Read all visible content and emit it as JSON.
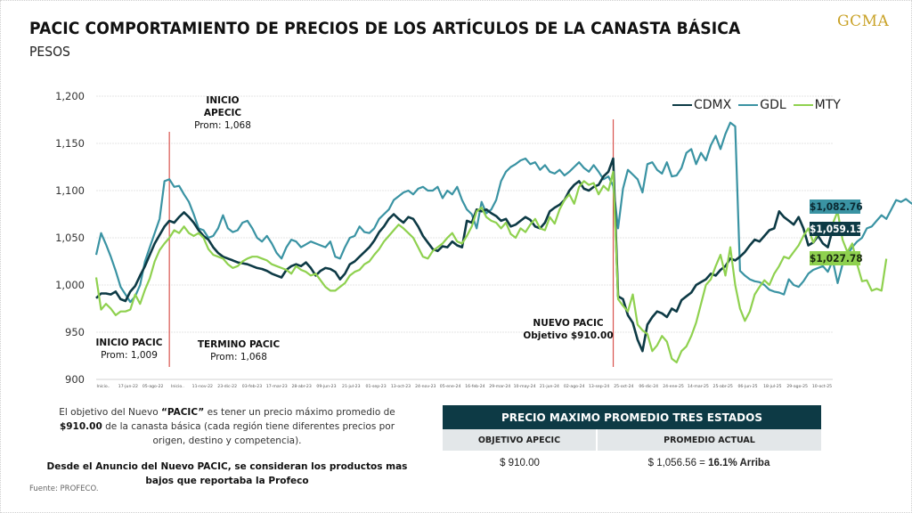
{
  "header": {
    "title": "PACIC COMPORTAMIENTO DE PRECIOS DE LOS ARTÍCULOS DE LA CANASTA BÁSICA",
    "subtitle": "PESOS",
    "logo": "GCMA"
  },
  "colors": {
    "CDMX": "#0d3a45",
    "GDL": "#3a93a3",
    "MTY": "#8fd14f",
    "event_line": "#d9534f",
    "table_header": "#0d3a45",
    "table_subheader": "#e3e7e9"
  },
  "annotations": {
    "inicio_apecic": {
      "line1": "INICIO",
      "line2": "APECIC",
      "line3": "Prom: 1,068"
    },
    "inicio_pacic": {
      "line1": "INICIO PACIC",
      "line2": "Prom: 1,009"
    },
    "termino_pacic": {
      "line1": "TERMINO PACIC",
      "line2": "Prom: 1,068"
    },
    "nuevo_pacic": {
      "line1": "NUEVO PACIC",
      "line2": "Objetivo $910.00"
    }
  },
  "end_labels": {
    "GDL": "$1,082.76",
    "CDMX": "$1,059.13",
    "MTY": "$1,027.78"
  },
  "notes": {
    "p1_pre": "El objetivo del Nuevo ",
    "p1_bold1": "“PACIC”",
    "p1_mid": " es tener un precio máximo promedio de ",
    "p1_bold2": "$910.00",
    "p1_post": " de la canasta básica (cada región tiene diferentes precios por origen, destino y competencia).",
    "p2": "Desde el Anuncio del Nuevo PACIC, se consideran los productos mas bajos que reportaba la Profeco",
    "source": "Fuente: PROFECO."
  },
  "table": {
    "title": "PRECIO MAXIMO PROMEDIO TRES ESTADOS",
    "col1_header": "OBJETIVO APECIC",
    "col2_header": "PROMEDIO ACTUAL",
    "col1_value": "$ 910.00",
    "col2_value": "$ 1,056.56  =",
    "col2_bold": "16.1% Arriba"
  },
  "chart_data": {
    "type": "line",
    "title": "PACIC COMPORTAMIENTO DE PRECIOS DE LOS ARTÍCULOS DE LA CANASTA BÁSICA",
    "ylabel": "PESOS",
    "xlabel": "",
    "ylim": [
      900,
      1200
    ],
    "yticks": [
      900,
      950,
      1000,
      1050,
      1100,
      1150,
      1200
    ],
    "ytick_labels": [
      "900",
      "950",
      "1,000",
      "1,050",
      "1,100",
      "1,150",
      "1,200"
    ],
    "grid": true,
    "legend_position": "top-right",
    "x_tick_labels": [
      "Inicio..",
      "17-jun-22",
      "05-ago-22",
      "Inicio..",
      "11-nov-22",
      "23-dic-22",
      "03-feb-23",
      "17-mar-23",
      "28-abr-23",
      "09-jun-23",
      "21-jul-23",
      "01-sep-23",
      "13-oct-23",
      "24-nov-23",
      "05-ene-24",
      "16-feb-24",
      "29-mar-24",
      "10-may-24",
      "21-jun-24",
      "02-ago-24",
      "13-sep-24",
      "25-oct-24",
      "06-dic-24",
      "24-ene-25",
      "14-mar-25",
      "25-abr-25",
      "06-jun-25",
      "18-jul-25",
      "29-ago-25",
      "10-oct-25"
    ],
    "event_markers": [
      {
        "label": "Inicio APECIC / Termino PACIC",
        "x_index": 15
      },
      {
        "label": "Nuevo PACIC",
        "x_index": 106
      }
    ],
    "series": [
      {
        "name": "CDMX",
        "values": [
          986,
          991,
          991,
          990,
          993,
          985,
          983,
          993,
          999,
          1010,
          1020,
          1032,
          1044,
          1053,
          1062,
          1068,
          1066,
          1072,
          1077,
          1072,
          1066,
          1058,
          1052,
          1048,
          1040,
          1034,
          1030,
          1028,
          1026,
          1024,
          1023,
          1022,
          1020,
          1018,
          1017,
          1015,
          1012,
          1010,
          1008,
          1016,
          1020,
          1022,
          1020,
          1024,
          1018,
          1010,
          1015,
          1018,
          1017,
          1014,
          1006,
          1012,
          1022,
          1025,
          1030,
          1035,
          1040,
          1047,
          1056,
          1062,
          1070,
          1075,
          1070,
          1066,
          1072,
          1070,
          1062,
          1052,
          1045,
          1038,
          1036,
          1041,
          1040,
          1046,
          1042,
          1040,
          1068,
          1066,
          1080,
          1078,
          1080,
          1076,
          1073,
          1068,
          1070,
          1062,
          1064,
          1068,
          1072,
          1069,
          1062,
          1060,
          1066,
          1078,
          1082,
          1085,
          1090,
          1100,
          1106,
          1110,
          1102,
          1100,
          1104,
          1106,
          1115,
          1120,
          1134,
          988,
          985,
          968,
          960,
          942,
          930,
          958,
          966,
          972,
          970,
          966,
          975,
          972,
          984,
          988,
          992,
          1000,
          1003,
          1006,
          1012,
          1010,
          1016,
          1020,
          1028,
          1026,
          1030,
          1035,
          1042,
          1048,
          1046,
          1052,
          1058,
          1060,
          1078,
          1072,
          1068,
          1064,
          1072,
          1060,
          1042,
          1045,
          1052,
          1044,
          1040,
          1059.13
        ]
      },
      {
        "name": "GDL",
        "values": [
          1032,
          1055,
          1043,
          1030,
          1015,
          998,
          990,
          982,
          988,
          1000,
          1025,
          1040,
          1055,
          1070,
          1110,
          1112,
          1104,
          1105,
          1096,
          1088,
          1075,
          1060,
          1058,
          1050,
          1052,
          1060,
          1074,
          1060,
          1056,
          1058,
          1066,
          1068,
          1060,
          1050,
          1046,
          1052,
          1044,
          1034,
          1028,
          1040,
          1048,
          1046,
          1040,
          1043,
          1046,
          1044,
          1042,
          1040,
          1046,
          1030,
          1028,
          1040,
          1050,
          1052,
          1062,
          1056,
          1055,
          1060,
          1070,
          1075,
          1080,
          1090,
          1094,
          1098,
          1100,
          1096,
          1102,
          1104,
          1100,
          1100,
          1104,
          1092,
          1100,
          1096,
          1104,
          1090,
          1080,
          1075,
          1060,
          1088,
          1076,
          1080,
          1090,
          1110,
          1120,
          1125,
          1128,
          1132,
          1134,
          1128,
          1130,
          1122,
          1127,
          1120,
          1118,
          1122,
          1116,
          1120,
          1125,
          1130,
          1124,
          1120,
          1127,
          1120,
          1112,
          1115,
          1105,
          1060,
          1102,
          1122,
          1117,
          1112,
          1098,
          1128,
          1130,
          1122,
          1118,
          1130,
          1115,
          1116,
          1124,
          1140,
          1144,
          1128,
          1140,
          1132,
          1148,
          1158,
          1144,
          1160,
          1172,
          1168,
          1015,
          1010,
          1006,
          1004,
          1003,
          1000,
          995,
          993,
          992,
          990,
          1006,
          1000,
          998,
          1004,
          1012,
          1016,
          1018,
          1020,
          1014,
          1026,
          1002,
          1022,
          1032,
          1040,
          1046,
          1050,
          1060,
          1062,
          1068,
          1074,
          1070,
          1080,
          1090,
          1088,
          1091,
          1087,
          1084,
          1080,
          1062,
          1072,
          1082.76
        ]
      },
      {
        "name": "MTY",
        "values": [
          1008,
          974,
          980,
          975,
          968,
          972,
          972,
          974,
          990,
          980,
          995,
          1007,
          1025,
          1037,
          1044,
          1050,
          1058,
          1055,
          1062,
          1055,
          1052,
          1055,
          1050,
          1038,
          1032,
          1030,
          1028,
          1022,
          1018,
          1020,
          1025,
          1028,
          1030,
          1030,
          1028,
          1026,
          1022,
          1020,
          1018,
          1016,
          1012,
          1020,
          1016,
          1014,
          1010,
          1012,
          1005,
          998,
          994,
          994,
          998,
          1002,
          1010,
          1014,
          1016,
          1022,
          1025,
          1032,
          1038,
          1046,
          1052,
          1058,
          1064,
          1060,
          1055,
          1050,
          1040,
          1030,
          1028,
          1036,
          1040,
          1044,
          1050,
          1055,
          1046,
          1044,
          1052,
          1062,
          1078,
          1082,
          1072,
          1068,
          1066,
          1060,
          1066,
          1054,
          1050,
          1060,
          1056,
          1064,
          1070,
          1060,
          1058,
          1072,
          1065,
          1080,
          1090,
          1096,
          1086,
          1104,
          1110,
          1106,
          1108,
          1096,
          1105,
          1100,
          1120,
          985,
          978,
          972,
          990,
          958,
          952,
          948,
          930,
          936,
          946,
          940,
          922,
          918,
          930,
          935,
          946,
          960,
          980,
          1000,
          1006,
          1020,
          1032,
          1010,
          1040,
          1000,
          975,
          962,
          972,
          990,
          998,
          1005,
          1000,
          1012,
          1020,
          1030,
          1028,
          1035,
          1042,
          1052,
          1060,
          1045,
          1055,
          1066,
          1060,
          1065,
          1078,
          1048,
          1035,
          1044,
          1022,
          1004,
          1005,
          994,
          996,
          994,
          1027.78
        ]
      }
    ]
  }
}
